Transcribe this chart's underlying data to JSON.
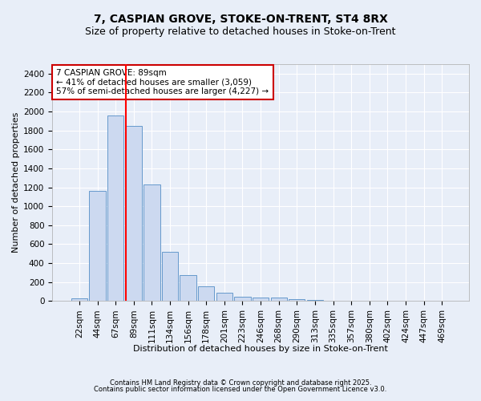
{
  "title": "7, CASPIAN GROVE, STOKE-ON-TRENT, ST4 8RX",
  "subtitle": "Size of property relative to detached houses in Stoke-on-Trent",
  "xlabel": "Distribution of detached houses by size in Stoke-on-Trent",
  "ylabel": "Number of detached properties",
  "bins": [
    "22sqm",
    "44sqm",
    "67sqm",
    "89sqm",
    "111sqm",
    "134sqm",
    "156sqm",
    "178sqm",
    "201sqm",
    "223sqm",
    "246sqm",
    "268sqm",
    "290sqm",
    "313sqm",
    "335sqm",
    "357sqm",
    "380sqm",
    "402sqm",
    "424sqm",
    "447sqm",
    "469sqm"
  ],
  "values": [
    25,
    1160,
    1960,
    1850,
    1230,
    520,
    275,
    155,
    90,
    45,
    40,
    38,
    20,
    8,
    5,
    3,
    2,
    2,
    1,
    1,
    1
  ],
  "bar_color": "#ccd9f0",
  "bar_edge_color": "#6699cc",
  "red_line_bin_index": 3,
  "annotation_line1": "7 CASPIAN GROVE: 89sqm",
  "annotation_line2": "← 41% of detached houses are smaller (3,059)",
  "annotation_line3": "57% of semi-detached houses are larger (4,227) →",
  "annotation_box_color": "#ffffff",
  "annotation_box_edge": "#cc0000",
  "footnote1": "Contains HM Land Registry data © Crown copyright and database right 2025.",
  "footnote2": "Contains public sector information licensed under the Open Government Licence v3.0.",
  "ylim": [
    0,
    2500
  ],
  "yticks": [
    0,
    200,
    400,
    600,
    800,
    1000,
    1200,
    1400,
    1600,
    1800,
    2000,
    2200,
    2400
  ],
  "bg_color": "#e8eef8",
  "plot_bg_color": "#e8eef8",
  "grid_color": "#ffffff",
  "title_fontsize": 10,
  "subtitle_fontsize": 9,
  "axis_label_fontsize": 8,
  "tick_fontsize": 7.5,
  "annot_fontsize": 7.5,
  "footnote_fontsize": 6
}
